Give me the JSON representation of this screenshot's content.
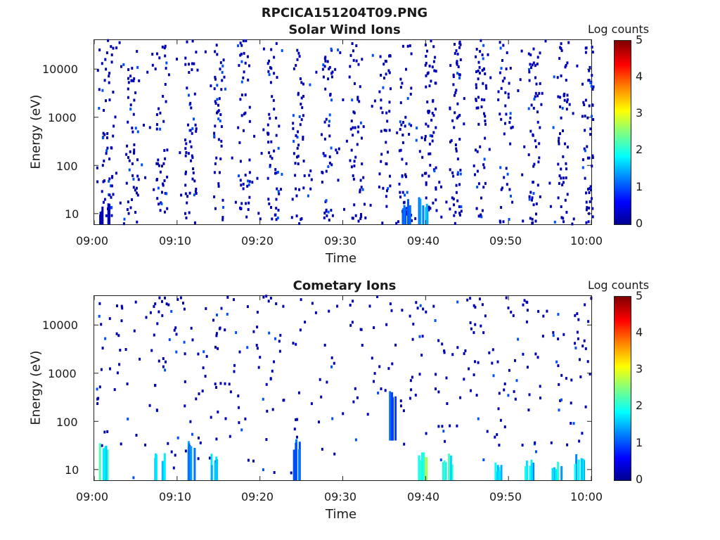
{
  "figure": {
    "title": "RPCICA151204T09.PNG"
  },
  "chart_data": [
    {
      "type": "heatmap",
      "title": "Solar Wind Ions",
      "xlabel": "Time",
      "ylabel": "Energy (eV)",
      "x_ticks": [
        "09:00",
        "09:10",
        "09:20",
        "09:30",
        "09:40",
        "09:50",
        "10:00"
      ],
      "y_ticks": [
        "10",
        "100",
        "1000",
        "10000"
      ],
      "y_scale": "log",
      "ylim": [
        6,
        40000
      ],
      "colorbar": {
        "label": "Log counts",
        "ticks": [
          "0",
          "1",
          "2",
          "3",
          "4",
          "5"
        ],
        "range": [
          0,
          5
        ]
      },
      "description_bands": [
        {
          "t_min": 1.2,
          "e_min": 6,
          "e_max": 15,
          "log_counts": 0.3
        },
        {
          "t_min": 37.5,
          "e_min": 6,
          "e_max": 20,
          "log_counts": 1.4
        },
        {
          "t_min": 39.5,
          "e_min": 6,
          "e_max": 20,
          "log_counts": 1.8
        }
      ],
      "scatter_columns_min": [
        1.5,
        4.5,
        8.0,
        11.5,
        15.0,
        18.0,
        21.5,
        24.5,
        28.0,
        31.5,
        35.0,
        37.5,
        40.5,
        43.5,
        46.5,
        49.5,
        53.0,
        56.5,
        59.5
      ],
      "grid": false
    },
    {
      "type": "heatmap",
      "title": "Cometary Ions",
      "xlabel": "Time",
      "ylabel": "Energy (eV)",
      "x_ticks": [
        "09:00",
        "09:10",
        "09:20",
        "09:30",
        "09:40",
        "09:50",
        "10:00"
      ],
      "y_ticks": [
        "10",
        "100",
        "1000",
        "10000"
      ],
      "y_scale": "log",
      "ylim": [
        6,
        40000
      ],
      "colorbar": {
        "label": "Log counts",
        "ticks": [
          "0",
          "1",
          "2",
          "3",
          "4",
          "5"
        ],
        "range": [
          0,
          5
        ]
      },
      "description_bands": [
        {
          "t_min": 1.0,
          "e_min": 6,
          "e_max": 35,
          "log_counts": 2.4
        },
        {
          "t_min": 7.8,
          "e_min": 6,
          "e_max": 20,
          "log_counts": 2.1
        },
        {
          "t_min": 11.5,
          "e_min": 6,
          "e_max": 40,
          "log_counts": 1.8
        },
        {
          "t_min": 14.2,
          "e_min": 6,
          "e_max": 20,
          "log_counts": 2.0
        },
        {
          "t_min": 24.5,
          "e_min": 6,
          "e_max": 40,
          "log_counts": 1.6
        },
        {
          "t_min": 36.0,
          "e_min": 40,
          "e_max": 500,
          "log_counts": 1.2
        },
        {
          "t_min": 39.5,
          "e_min": 6,
          "e_max": 25,
          "log_counts": 3.0
        },
        {
          "t_min": 42.5,
          "e_min": 6,
          "e_max": 20,
          "log_counts": 2.4
        },
        {
          "t_min": 48.8,
          "e_min": 6,
          "e_max": 15,
          "log_counts": 2.3
        },
        {
          "t_min": 52.5,
          "e_min": 6,
          "e_max": 15,
          "log_counts": 2.0
        },
        {
          "t_min": 55.8,
          "e_min": 6,
          "e_max": 15,
          "log_counts": 2.2
        },
        {
          "t_min": 58.5,
          "e_min": 6,
          "e_max": 20,
          "log_counts": 1.9
        }
      ],
      "grid": false
    }
  ],
  "colors": {
    "axis": "#222222"
  }
}
